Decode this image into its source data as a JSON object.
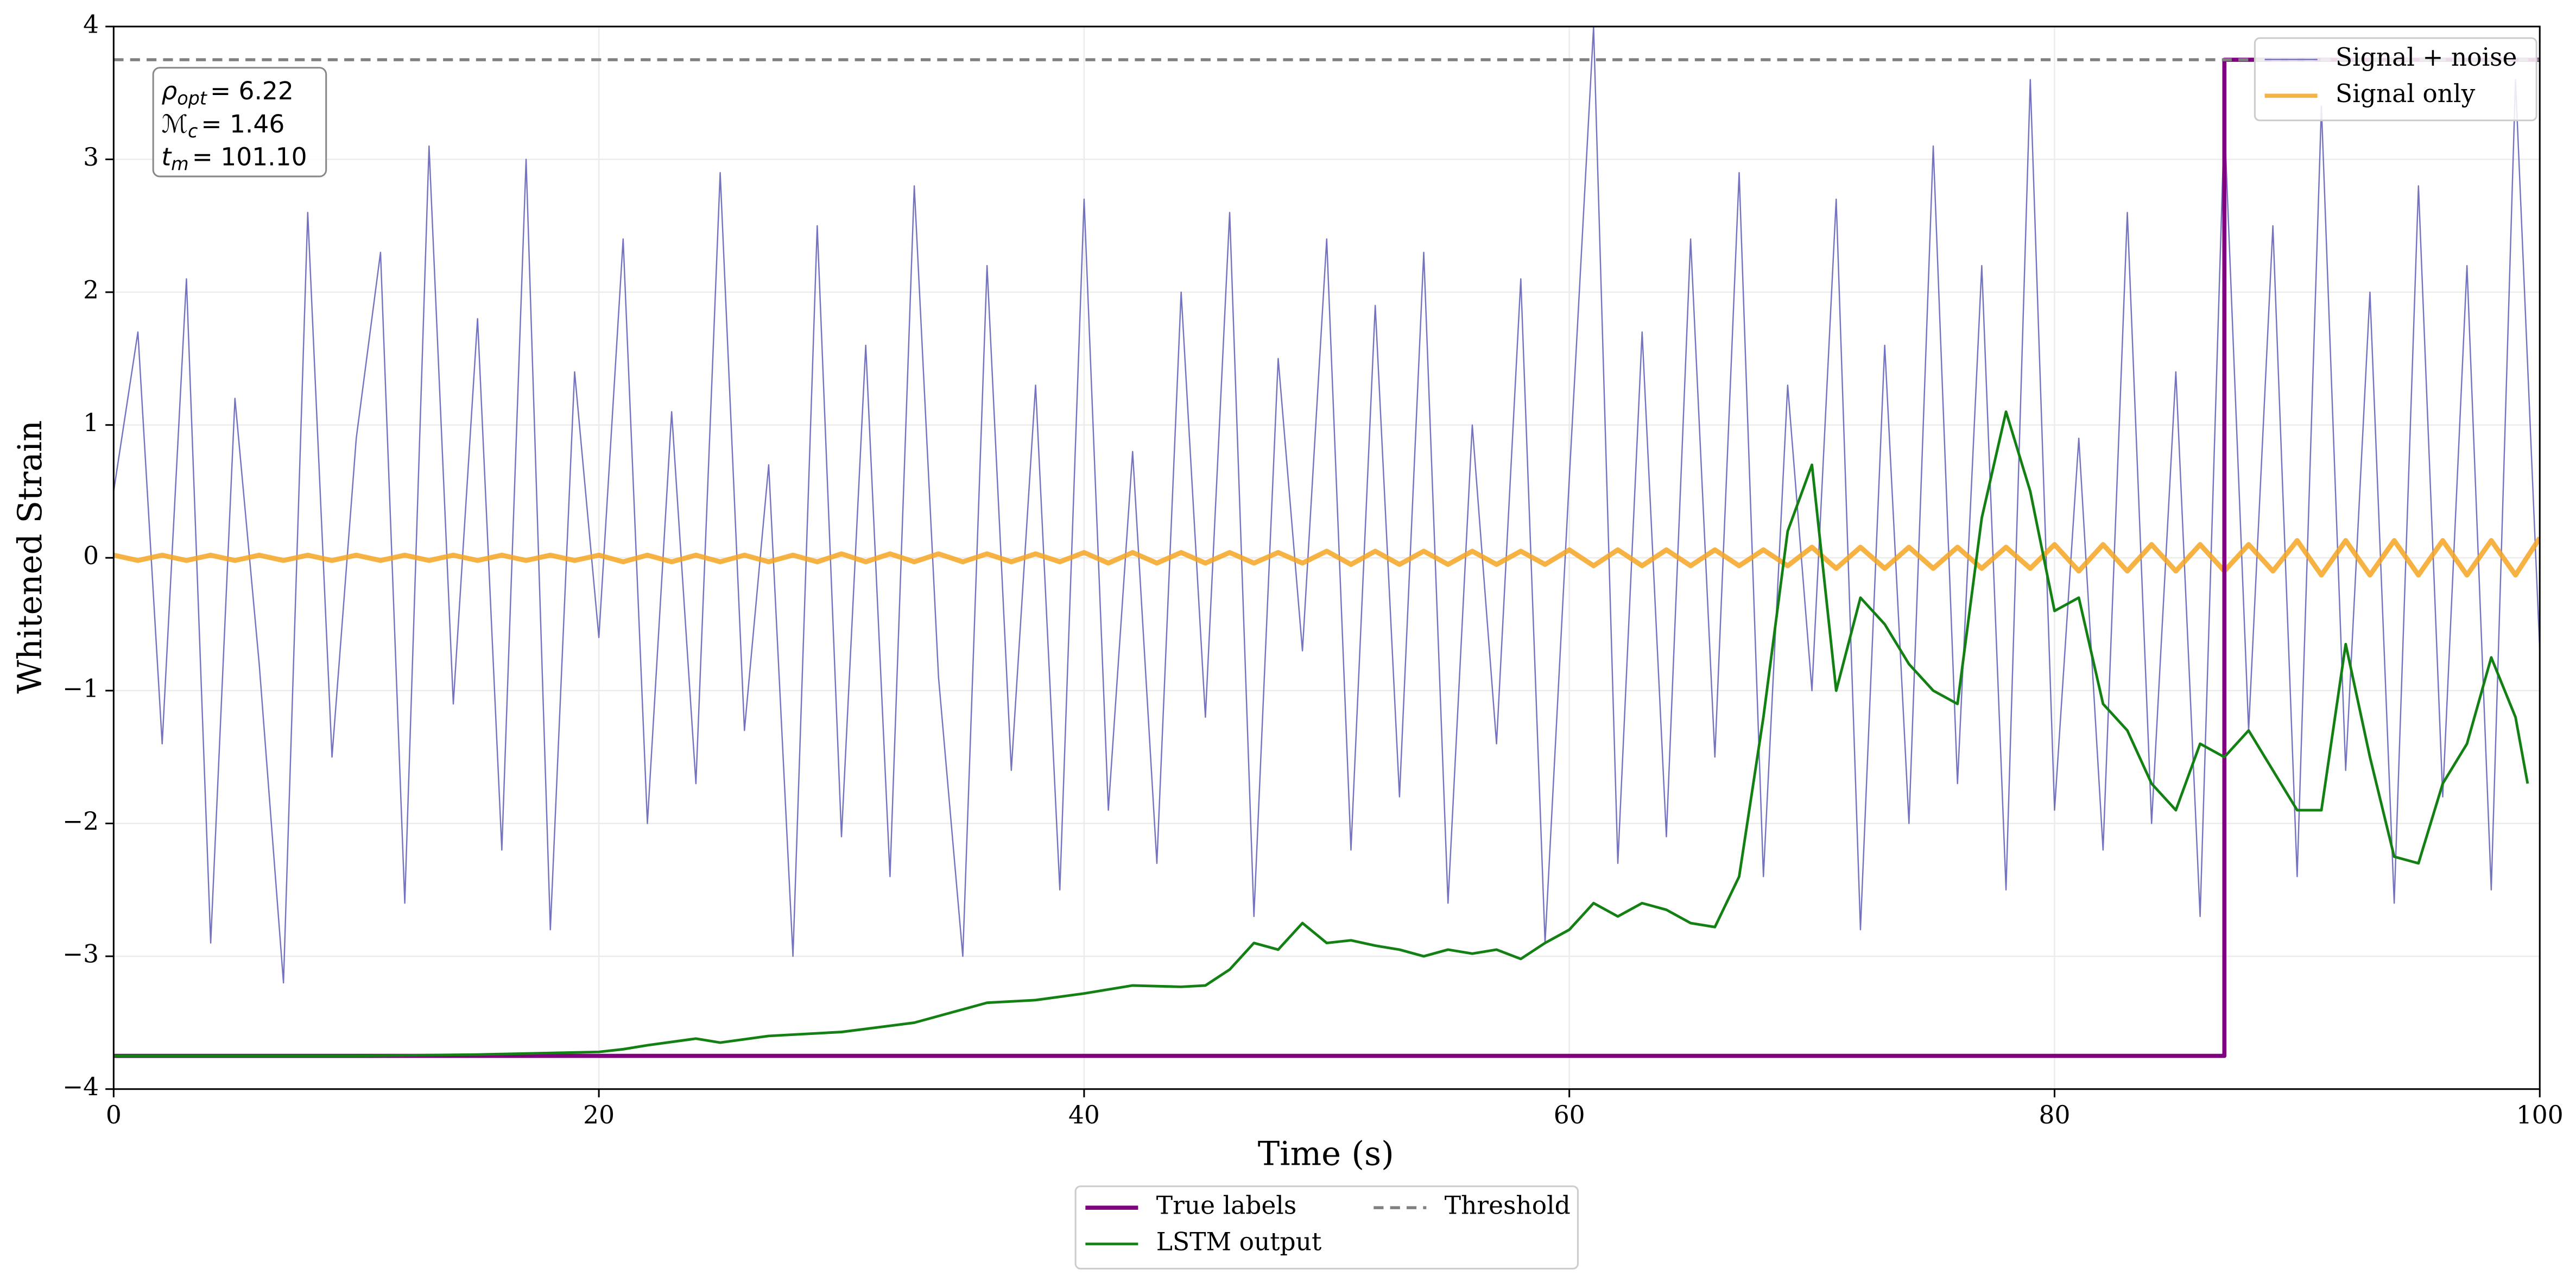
{
  "chart_data": {
    "type": "line",
    "xlabel": "Time (s)",
    "ylabel": "Whitened Strain",
    "xlim": [
      0,
      100
    ],
    "xticks": [
      0,
      20,
      40,
      60,
      80,
      100
    ],
    "ylim": [
      -4,
      4
    ],
    "yticks": [
      {
        "value": -4,
        "label": "−4"
      },
      {
        "value": -3,
        "label": "−3"
      },
      {
        "value": -2,
        "label": "−2"
      },
      {
        "value": -1,
        "label": "−1"
      },
      0,
      1,
      2,
      3,
      4
    ],
    "grid": true,
    "legends": [
      {
        "loc": "upper right",
        "ncol": 1
      },
      {
        "loc": "lower center",
        "ncol": 2
      }
    ],
    "annotations": [
      {
        "symbol": "ρ",
        "subscript": "opt",
        "text": "= 6.22"
      },
      {
        "symbol": "ℳ",
        "subscript": "c",
        "text": "= 1.46"
      },
      {
        "symbol": "t",
        "subscript": "m",
        "text": "= 101.10"
      }
    ],
    "series": [
      {
        "name": "Signal + noise",
        "color": "#5b5bb5",
        "width": 0.8,
        "opacity": 0.85,
        "legend": "upper right",
        "x": [
          0,
          1,
          2,
          3,
          4,
          5,
          6,
          7,
          8,
          9,
          10,
          11,
          12,
          13,
          14,
          15,
          16,
          17,
          18,
          19,
          20,
          21,
          22,
          23,
          24,
          25,
          26,
          27,
          28,
          29,
          30,
          31,
          32,
          33,
          34,
          35,
          36,
          37,
          38,
          39,
          40,
          41,
          42,
          43,
          44,
          45,
          46,
          47,
          48,
          49,
          50,
          51,
          52,
          53,
          54,
          55,
          56,
          57,
          58,
          59,
          60,
          61,
          62,
          63,
          64,
          65,
          66,
          67,
          68,
          69,
          70,
          71,
          72,
          73,
          74,
          75,
          76,
          77,
          78,
          79,
          80,
          81,
          82,
          83,
          84,
          85,
          86,
          87,
          88,
          89,
          90,
          91,
          92,
          93,
          94,
          95,
          96,
          97,
          98,
          99,
          100
        ],
        "values": [
          0.5,
          1.7,
          -1.4,
          2.1,
          -2.9,
          1.2,
          -0.8,
          -3.2,
          2.6,
          -1.5,
          0.9,
          2.3,
          -2.6,
          3.1,
          -1.1,
          1.8,
          -2.2,
          3.0,
          -2.8,
          1.4,
          -0.6,
          2.4,
          -2.0,
          1.1,
          -1.7,
          2.9,
          -1.3,
          0.7,
          -3.0,
          2.5,
          -2.1,
          1.6,
          -2.4,
          2.8,
          -0.9,
          -3.0,
          2.2,
          -1.6,
          1.3,
          -2.5,
          2.7,
          -1.9,
          0.8,
          -2.3,
          2.0,
          -1.2,
          2.6,
          -2.7,
          1.5,
          -0.7,
          2.4,
          -2.2,
          1.9,
          -1.8,
          2.3,
          -2.6,
          1.0,
          -1.4,
          2.1,
          -2.9,
          0.6,
          4.0,
          -2.3,
          1.7,
          -2.1,
          2.4,
          -1.5,
          2.9,
          -2.4,
          1.3,
          -1.0,
          2.7,
          -2.8,
          1.6,
          -2.0,
          3.1,
          -1.7,
          2.2,
          -2.5,
          3.6,
          -1.9,
          0.9,
          -2.2,
          2.6,
          -2.0,
          1.4,
          -2.7,
          3.3,
          -1.3,
          2.5,
          -2.4,
          3.4,
          -1.6,
          2.0,
          -2.6,
          2.8,
          -1.8,
          2.2,
          -2.5,
          3.6,
          -0.7
        ]
      },
      {
        "name": "Signal only",
        "color": "#f5a623",
        "width": 3,
        "opacity": 0.85,
        "legend": "upper right",
        "x": [
          0,
          1,
          2,
          3,
          4,
          5,
          6,
          7,
          8,
          9,
          10,
          11,
          12,
          13,
          14,
          15,
          16,
          17,
          18,
          19,
          20,
          21,
          22,
          23,
          24,
          25,
          26,
          27,
          28,
          29,
          30,
          31,
          32,
          33,
          34,
          35,
          36,
          37,
          38,
          39,
          40,
          41,
          42,
          43,
          44,
          45,
          46,
          47,
          48,
          49,
          50,
          51,
          52,
          53,
          54,
          55,
          56,
          57,
          58,
          59,
          60,
          61,
          62,
          63,
          64,
          65,
          66,
          67,
          68,
          69,
          70,
          71,
          72,
          73,
          74,
          75,
          76,
          77,
          78,
          79,
          80,
          81,
          82,
          83,
          84,
          85,
          86,
          87,
          88,
          89,
          90,
          91,
          92,
          93,
          94,
          95,
          96,
          97,
          98,
          99,
          100
        ],
        "values": [
          0.02,
          -0.02,
          0.02,
          -0.02,
          0.02,
          -0.02,
          0.02,
          -0.02,
          0.02,
          -0.02,
          0.02,
          -0.02,
          0.02,
          -0.02,
          0.02,
          -0.02,
          0.02,
          -0.02,
          0.02,
          -0.02,
          0.02,
          -0.03,
          0.02,
          -0.03,
          0.02,
          -0.03,
          0.02,
          -0.03,
          0.02,
          -0.03,
          0.03,
          -0.03,
          0.03,
          -0.03,
          0.03,
          -0.03,
          0.03,
          -0.03,
          0.03,
          -0.03,
          0.04,
          -0.04,
          0.04,
          -0.04,
          0.04,
          -0.04,
          0.04,
          -0.04,
          0.04,
          -0.04,
          0.05,
          -0.05,
          0.05,
          -0.05,
          0.05,
          -0.05,
          0.05,
          -0.05,
          0.05,
          -0.05,
          0.06,
          -0.06,
          0.06,
          -0.06,
          0.06,
          -0.06,
          0.06,
          -0.06,
          0.06,
          -0.06,
          0.08,
          -0.08,
          0.08,
          -0.08,
          0.08,
          -0.08,
          0.08,
          -0.08,
          0.08,
          -0.08,
          0.1,
          -0.1,
          0.1,
          -0.1,
          0.1,
          -0.1,
          0.1,
          -0.1,
          0.1,
          -0.1,
          0.13,
          -0.13,
          0.13,
          -0.13,
          0.13,
          -0.13,
          0.13,
          -0.13,
          0.13,
          -0.13,
          0.15
        ]
      },
      {
        "name": "True labels",
        "color": "#800080",
        "width": 2.5,
        "opacity": 1,
        "legend": "lower center",
        "x": [
          0,
          87,
          87,
          100
        ],
        "values": [
          -3.75,
          -3.75,
          3.75,
          3.75
        ]
      },
      {
        "name": "LSTM output",
        "color": "#128012",
        "width": 1.6,
        "opacity": 1,
        "legend": "lower center",
        "x": [
          0,
          5,
          10,
          15,
          20,
          21,
          22,
          24,
          25,
          27,
          30,
          33,
          35,
          36,
          38,
          40,
          42,
          44,
          45,
          46,
          47,
          48,
          49,
          50,
          51,
          52,
          53,
          54,
          55,
          56,
          57,
          58,
          59,
          60,
          61,
          62,
          63,
          64,
          65,
          66,
          67,
          68,
          69,
          70,
          71,
          72,
          73,
          74,
          75,
          76,
          77,
          78,
          79,
          80,
          81,
          82,
          83,
          84,
          85,
          86,
          87,
          88,
          89,
          90,
          91,
          92,
          93,
          94,
          95,
          96,
          97,
          98,
          99,
          99.5
        ],
        "values": [
          -3.75,
          -3.75,
          -3.75,
          -3.74,
          -3.72,
          -3.7,
          -3.67,
          -3.62,
          -3.65,
          -3.6,
          -3.57,
          -3.5,
          -3.4,
          -3.35,
          -3.33,
          -3.28,
          -3.22,
          -3.23,
          -3.22,
          -3.1,
          -2.9,
          -2.95,
          -2.75,
          -2.9,
          -2.88,
          -2.92,
          -2.95,
          -3.0,
          -2.95,
          -2.98,
          -2.95,
          -3.02,
          -2.9,
          -2.8,
          -2.6,
          -2.7,
          -2.6,
          -2.65,
          -2.75,
          -2.78,
          -2.4,
          -1.2,
          0.2,
          0.7,
          -1.0,
          -0.3,
          -0.5,
          -0.8,
          -1.0,
          -1.1,
          0.3,
          1.1,
          0.5,
          -0.4,
          -0.3,
          -1.1,
          -1.3,
          -1.7,
          -1.9,
          -1.4,
          -1.5,
          -1.3,
          -1.6,
          -1.9,
          -1.9,
          -0.65,
          -1.5,
          -2.25,
          -2.3,
          -1.7,
          -1.4,
          -0.75,
          -1.2,
          -1.7
        ]
      }
    ],
    "hlines": [
      {
        "name": "Threshold",
        "value": 3.75,
        "color": "#808080",
        "dashed": true,
        "legend": "lower center"
      }
    ]
  }
}
